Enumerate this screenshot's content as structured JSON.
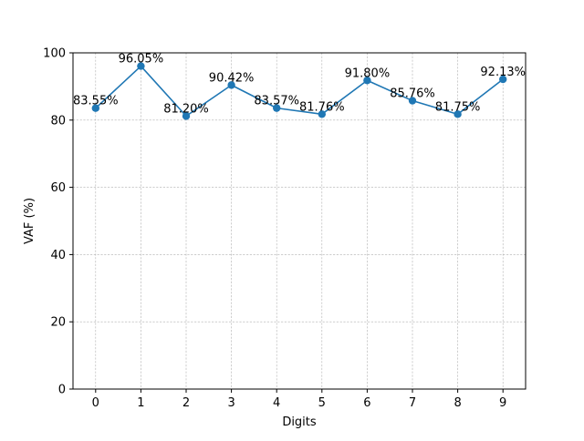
{
  "chart_data": {
    "type": "line",
    "title": "",
    "xlabel": "Digits",
    "ylabel": "VAF (%)",
    "x": [
      0,
      1,
      2,
      3,
      4,
      5,
      6,
      7,
      8,
      9
    ],
    "series": [
      {
        "values": [
          83.55,
          96.05,
          81.2,
          90.42,
          83.57,
          81.76,
          91.8,
          85.76,
          81.75,
          92.13
        ],
        "labels": [
          "83.55%",
          "96.05%",
          "81.20%",
          "90.42%",
          "83.57%",
          "81.76%",
          "91.80%",
          "85.76%",
          "81.75%",
          "92.13%"
        ],
        "color": "#1f77b4",
        "marker": "circle"
      }
    ],
    "xlim": [
      -0.5,
      9.5
    ],
    "ylim": [
      0,
      100
    ],
    "xticks": [
      "0",
      "1",
      "2",
      "3",
      "4",
      "5",
      "6",
      "7",
      "8",
      "9"
    ],
    "yticks": [
      "0",
      "20",
      "40",
      "60",
      "80",
      "100"
    ],
    "grid": true,
    "legend": "none"
  }
}
